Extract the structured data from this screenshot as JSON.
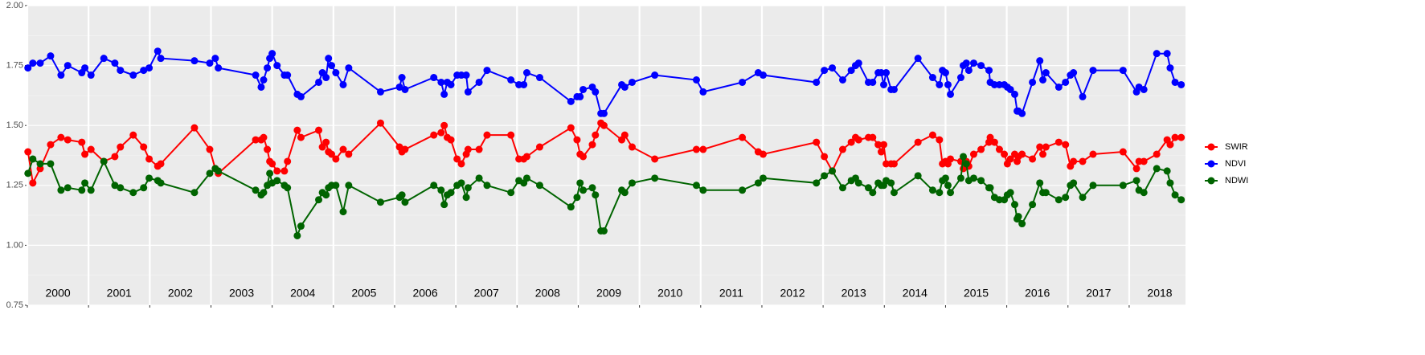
{
  "chart_data": {
    "type": "line",
    "x": [
      2000.01,
      2000.09,
      2000.21,
      2000.38,
      2000.55,
      2000.66,
      2000.89,
      2000.94,
      2001.04,
      2001.25,
      2001.43,
      2001.52,
      2001.73,
      2001.9,
      2001.99,
      2002.13,
      2002.18,
      2002.73,
      2002.98,
      2003.07,
      2003.12,
      2003.73,
      2003.82,
      2003.86,
      2003.92,
      2003.96,
      2004.0,
      2004.08,
      2004.2,
      2004.25,
      2004.41,
      2004.47,
      2004.76,
      2004.82,
      2004.88,
      2004.92,
      2004.97,
      2005.04,
      2005.16,
      2005.25,
      2005.77,
      2006.08,
      2006.12,
      2006.17,
      2006.64,
      2006.76,
      2006.81,
      2006.86,
      2006.92,
      2007.02,
      2007.09,
      2007.17,
      2007.2,
      2007.38,
      2007.51,
      2007.9,
      2008.03,
      2008.11,
      2008.16,
      2008.37,
      2008.88,
      2008.98,
      2009.03,
      2009.08,
      2009.23,
      2009.28,
      2009.37,
      2009.42,
      2009.71,
      2009.76,
      2009.88,
      2010.25,
      2010.93,
      2011.04,
      2011.68,
      2011.94,
      2012.02,
      2012.89,
      2013.02,
      2013.15,
      2013.32,
      2013.46,
      2013.53,
      2013.58,
      2013.74,
      2013.81,
      2013.9,
      2013.95,
      2013.99,
      2014.03,
      2014.11,
      2014.16,
      2014.55,
      2014.79,
      2014.9,
      2014.95,
      2015.0,
      2015.04,
      2015.08,
      2015.25,
      2015.29,
      2015.34,
      2015.38,
      2015.46,
      2015.58,
      2015.71,
      2015.73,
      2015.8,
      2015.88,
      2015.96,
      2016.01,
      2016.06,
      2016.13,
      2016.17,
      2016.19,
      2016.25,
      2016.42,
      2016.54,
      2016.59,
      2016.64,
      2016.85,
      2016.96,
      2017.04,
      2017.09,
      2017.24,
      2017.41,
      2017.9,
      2018.12,
      2018.16,
      2018.24,
      2018.45,
      2018.62,
      2018.67,
      2018.75,
      2018.85
    ],
    "series": [
      {
        "name": "SWIR",
        "color": "#ff0000",
        "values": [
          1.39,
          1.26,
          1.32,
          1.42,
          1.45,
          1.44,
          1.43,
          1.38,
          1.4,
          1.35,
          1.37,
          1.41,
          1.46,
          1.41,
          1.36,
          1.33,
          1.34,
          1.49,
          1.4,
          1.32,
          1.3,
          1.44,
          1.44,
          1.45,
          1.4,
          1.35,
          1.34,
          1.31,
          1.31,
          1.35,
          1.48,
          1.45,
          1.48,
          1.41,
          1.43,
          1.39,
          1.38,
          1.36,
          1.4,
          1.38,
          1.51,
          1.41,
          1.39,
          1.4,
          1.46,
          1.47,
          1.5,
          1.45,
          1.44,
          1.36,
          1.34,
          1.38,
          1.4,
          1.4,
          1.46,
          1.46,
          1.36,
          1.36,
          1.37,
          1.41,
          1.49,
          1.44,
          1.38,
          1.37,
          1.42,
          1.46,
          1.51,
          1.5,
          1.44,
          1.46,
          1.41,
          1.36,
          1.4,
          1.4,
          1.45,
          1.39,
          1.38,
          1.43,
          1.37,
          1.31,
          1.4,
          1.43,
          1.45,
          1.44,
          1.45,
          1.45,
          1.42,
          1.39,
          1.42,
          1.34,
          1.34,
          1.34,
          1.43,
          1.46,
          1.44,
          1.34,
          1.35,
          1.34,
          1.36,
          1.35,
          1.32,
          1.35,
          1.33,
          1.38,
          1.4,
          1.43,
          1.45,
          1.43,
          1.4,
          1.38,
          1.34,
          1.36,
          1.38,
          1.35,
          1.37,
          1.38,
          1.36,
          1.41,
          1.38,
          1.41,
          1.43,
          1.42,
          1.33,
          1.35,
          1.35,
          1.38,
          1.39,
          1.32,
          1.35,
          1.35,
          1.38,
          1.44,
          1.42,
          1.45,
          1.45
        ]
      },
      {
        "name": "NDVI",
        "color": "#0000ff",
        "values": [
          1.74,
          1.76,
          1.76,
          1.79,
          1.71,
          1.75,
          1.72,
          1.74,
          1.71,
          1.78,
          1.76,
          1.73,
          1.71,
          1.73,
          1.74,
          1.81,
          1.78,
          1.77,
          1.76,
          1.78,
          1.74,
          1.71,
          1.66,
          1.69,
          1.74,
          1.78,
          1.8,
          1.75,
          1.71,
          1.71,
          1.63,
          1.62,
          1.68,
          1.72,
          1.7,
          1.78,
          1.75,
          1.72,
          1.67,
          1.74,
          1.64,
          1.66,
          1.7,
          1.65,
          1.7,
          1.68,
          1.63,
          1.68,
          1.67,
          1.71,
          1.71,
          1.71,
          1.64,
          1.68,
          1.73,
          1.69,
          1.67,
          1.67,
          1.72,
          1.7,
          1.6,
          1.62,
          1.62,
          1.65,
          1.66,
          1.64,
          1.55,
          1.55,
          1.67,
          1.66,
          1.68,
          1.71,
          1.69,
          1.64,
          1.68,
          1.72,
          1.71,
          1.68,
          1.73,
          1.74,
          1.69,
          1.73,
          1.75,
          1.76,
          1.68,
          1.68,
          1.72,
          1.72,
          1.67,
          1.72,
          1.65,
          1.65,
          1.78,
          1.7,
          1.67,
          1.73,
          1.72,
          1.67,
          1.63,
          1.7,
          1.75,
          1.76,
          1.73,
          1.76,
          1.75,
          1.73,
          1.68,
          1.67,
          1.67,
          1.67,
          1.66,
          1.65,
          1.63,
          1.56,
          1.56,
          1.55,
          1.68,
          1.77,
          1.69,
          1.72,
          1.66,
          1.68,
          1.71,
          1.72,
          1.62,
          1.73,
          1.73,
          1.64,
          1.66,
          1.65,
          1.8,
          1.8,
          1.74,
          1.68,
          1.67
        ]
      },
      {
        "name": "NDWI",
        "color": "#006400",
        "values": [
          1.3,
          1.36,
          1.34,
          1.34,
          1.23,
          1.24,
          1.23,
          1.26,
          1.23,
          1.35,
          1.25,
          1.24,
          1.22,
          1.24,
          1.28,
          1.27,
          1.26,
          1.22,
          1.3,
          1.32,
          1.31,
          1.23,
          1.21,
          1.22,
          1.25,
          1.3,
          1.26,
          1.27,
          1.25,
          1.24,
          1.04,
          1.08,
          1.19,
          1.22,
          1.21,
          1.24,
          1.25,
          1.25,
          1.14,
          1.25,
          1.18,
          1.2,
          1.21,
          1.18,
          1.25,
          1.23,
          1.17,
          1.21,
          1.22,
          1.25,
          1.26,
          1.2,
          1.24,
          1.28,
          1.25,
          1.22,
          1.27,
          1.26,
          1.28,
          1.25,
          1.16,
          1.2,
          1.26,
          1.23,
          1.24,
          1.21,
          1.06,
          1.06,
          1.23,
          1.22,
          1.26,
          1.28,
          1.25,
          1.23,
          1.23,
          1.26,
          1.28,
          1.26,
          1.29,
          1.31,
          1.24,
          1.27,
          1.28,
          1.26,
          1.24,
          1.22,
          1.26,
          1.25,
          1.25,
          1.27,
          1.26,
          1.22,
          1.29,
          1.23,
          1.22,
          1.27,
          1.28,
          1.25,
          1.22,
          1.28,
          1.37,
          1.34,
          1.27,
          1.28,
          1.27,
          1.24,
          1.24,
          1.2,
          1.19,
          1.19,
          1.21,
          1.22,
          1.17,
          1.11,
          1.12,
          1.09,
          1.17,
          1.26,
          1.22,
          1.22,
          1.19,
          1.2,
          1.25,
          1.26,
          1.2,
          1.25,
          1.25,
          1.27,
          1.23,
          1.22,
          1.32,
          1.31,
          1.26,
          1.21,
          1.19
        ]
      }
    ],
    "xlim": [
      2000,
      2018.92
    ],
    "xticks": [
      {
        "value": 2000,
        "label": "2000"
      },
      {
        "value": 2001,
        "label": "2001"
      },
      {
        "value": 2002,
        "label": "2002"
      },
      {
        "value": 2003,
        "label": "2003"
      },
      {
        "value": 2004,
        "label": "2004"
      },
      {
        "value": 2005,
        "label": "2005"
      },
      {
        "value": 2006,
        "label": "2006"
      },
      {
        "value": 2007,
        "label": "2007"
      },
      {
        "value": 2008,
        "label": "2008"
      },
      {
        "value": 2009,
        "label": "2009"
      },
      {
        "value": 2010,
        "label": "2010"
      },
      {
        "value": 2011,
        "label": "2011"
      },
      {
        "value": 2012,
        "label": "2012"
      },
      {
        "value": 2013,
        "label": "2013"
      },
      {
        "value": 2014,
        "label": "2014"
      },
      {
        "value": 2015,
        "label": "2015"
      },
      {
        "value": 2016,
        "label": "2016"
      },
      {
        "value": 2017,
        "label": "2017"
      },
      {
        "value": 2018,
        "label": "2018"
      }
    ],
    "ylim": [
      0.75,
      2.0
    ],
    "yticks": [
      {
        "value": 0.75,
        "label": "0.75"
      },
      {
        "value": 1,
        "label": "1.00"
      },
      {
        "value": 1.25,
        "label": "1.25"
      },
      {
        "value": 1.5,
        "label": "1.50"
      },
      {
        "value": 1.75,
        "label": "1.75"
      },
      {
        "value": 2,
        "label": "2.00"
      }
    ],
    "grid": true,
    "legend": "right"
  }
}
